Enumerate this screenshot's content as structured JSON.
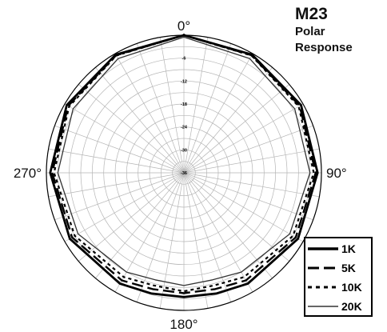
{
  "title": {
    "model": "M23",
    "line1": "Polar",
    "line2": "Response"
  },
  "chart_data": {
    "type": "polar",
    "angle_labels": [
      "0°",
      "90°",
      "180°",
      "270°"
    ],
    "radial_ticks": [
      0,
      -6,
      -12,
      -18,
      -24,
      -30,
      -36
    ],
    "radial_range_db": [
      -36,
      0
    ],
    "angle_grid_step_deg": 10,
    "grid": true,
    "legend_position": "bottom-right",
    "series": [
      {
        "name": "1K",
        "color": "#000000",
        "style": "solid-thick",
        "angles": [
          0,
          30,
          60,
          90,
          120,
          150,
          165,
          180,
          195,
          210,
          240,
          270,
          300,
          330
        ],
        "values_db": [
          0,
          -0.3,
          -0.6,
          -1,
          -1.5,
          -2.5,
          -3.3,
          -3.5,
          -3.3,
          -2.5,
          -1.5,
          -1,
          -0.6,
          -0.3
        ]
      },
      {
        "name": "5K",
        "color": "#000000",
        "style": "long-dash",
        "angles": [
          0,
          30,
          60,
          90,
          120,
          150,
          165,
          180,
          195,
          210,
          240,
          270,
          300,
          330
        ],
        "values_db": [
          0,
          -0.5,
          -1,
          -1.5,
          -2.2,
          -3.5,
          -4.5,
          -4.5,
          -4.5,
          -3.5,
          -2.2,
          -1.5,
          -1,
          -0.5
        ]
      },
      {
        "name": "10K",
        "color": "#000000",
        "style": "short-dash",
        "angles": [
          0,
          30,
          60,
          90,
          120,
          150,
          165,
          180,
          195,
          210,
          240,
          270,
          300,
          330
        ],
        "values_db": [
          0,
          -0.6,
          -1.3,
          -2,
          -3,
          -4.5,
          -5.5,
          -5,
          -5.5,
          -4.5,
          -3,
          -2,
          -1.3,
          -0.6
        ]
      },
      {
        "name": "20K",
        "color": "#333333",
        "style": "solid-thin",
        "angles": [
          0,
          30,
          60,
          90,
          120,
          150,
          165,
          180,
          195,
          210,
          240,
          270,
          300,
          330
        ],
        "values_db": [
          -0.5,
          -1.5,
          -2.5,
          -3,
          -4,
          -6,
          -7,
          -6.5,
          -7,
          -6,
          -4,
          -3,
          -2.5,
          -1.5
        ]
      }
    ]
  }
}
